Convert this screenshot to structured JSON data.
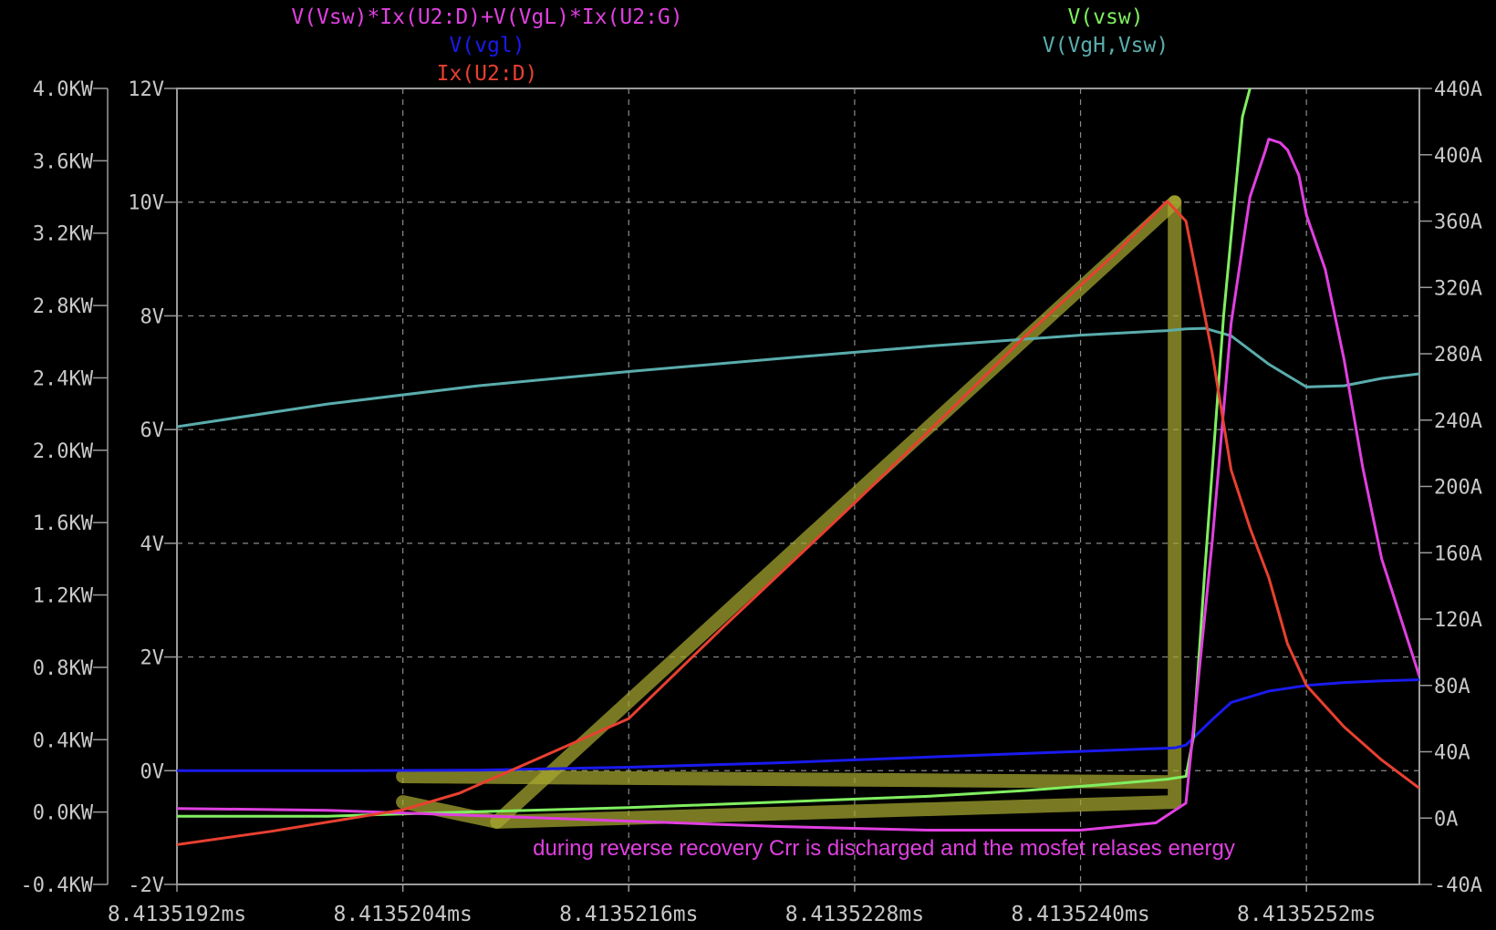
{
  "chart_data": {
    "type": "line",
    "x_unit": "ms",
    "x_ticks": [
      "8.4135192ms",
      "8.4135204ms",
      "8.4135216ms",
      "8.4135228ms",
      "8.4135240ms",
      "8.4135252ms"
    ],
    "xlim": [
      8.4135192,
      8.4135258
    ],
    "axes": {
      "power": {
        "ticks": [
          "4.0KW",
          "3.6KW",
          "3.2KW",
          "2.8KW",
          "2.4KW",
          "2.0KW",
          "1.6KW",
          "1.2KW",
          "0.8KW",
          "0.4KW",
          "0.0KW",
          "-0.4KW"
        ],
        "range": [
          -0.4,
          4.0
        ],
        "unit": "KW"
      },
      "voltage": {
        "ticks": [
          "12V",
          "10V",
          "8V",
          "6V",
          "4V",
          "2V",
          "0V",
          "-2V"
        ],
        "range": [
          -2,
          12
        ],
        "unit": "V"
      },
      "current": {
        "ticks": [
          "440A",
          "400A",
          "360A",
          "320A",
          "280A",
          "240A",
          "200A",
          "160A",
          "120A",
          "80A",
          "40A",
          "0A",
          "-40A"
        ],
        "range": [
          -40,
          440
        ],
        "unit": "A"
      }
    },
    "grid": true,
    "series": [
      {
        "name": "V(Vsw)*Ix(U2:D)+V(VgL)*Ix(U2:G)",
        "axis": "power",
        "color": "#e040e0",
        "x": [
          8.4135192,
          8.41352,
          8.4135208,
          8.4135216,
          8.4135224,
          8.4135232,
          8.413524,
          8.4135244,
          8.41352456,
          8.4135247,
          8.4135248,
          8.4135249,
          8.41352498,
          8.413525,
          8.41352506,
          8.4135251,
          8.41352516,
          8.4135252,
          8.4135253,
          8.4135254,
          8.4135255,
          8.4135256,
          8.4135258
        ],
        "y": [
          0.02,
          0.01,
          -0.02,
          -0.05,
          -0.08,
          -0.1,
          -0.1,
          -0.06,
          0.05,
          1.5,
          2.7,
          3.4,
          3.65,
          3.72,
          3.7,
          3.66,
          3.52,
          3.3,
          3.0,
          2.5,
          1.9,
          1.4,
          0.75
        ]
      },
      {
        "name": "V(vgl)",
        "axis": "voltage",
        "color": "#1a1aee",
        "x": [
          8.4135192,
          8.41352,
          8.4135208,
          8.4135216,
          8.4135224,
          8.4135232,
          8.413524,
          8.4135245,
          8.41352456,
          8.4135247,
          8.4135248,
          8.413525,
          8.4135252,
          8.4135254,
          8.4135256,
          8.4135258
        ],
        "y": [
          0.0,
          0.0,
          0.01,
          0.06,
          0.14,
          0.24,
          0.34,
          0.4,
          0.45,
          0.9,
          1.2,
          1.4,
          1.5,
          1.55,
          1.58,
          1.6
        ]
      },
      {
        "name": "Ix(U2:D)",
        "axis": "current",
        "color": "#e84030",
        "x": [
          8.4135192,
          8.4135197,
          8.4135204,
          8.4135207,
          8.4135211,
          8.4135216,
          8.4135221,
          8.4135228,
          8.4135233,
          8.4135237,
          8.41352418,
          8.41352446,
          8.41352456,
          8.4135247,
          8.4135248,
          8.4135249,
          8.413525,
          8.4135251,
          8.4135252,
          8.4135254,
          8.4135256,
          8.4135258
        ],
        "y": [
          -16,
          -8,
          5,
          15,
          35,
          60,
          115,
          190,
          245,
          290,
          340,
          372,
          360,
          280,
          210,
          175,
          145,
          105,
          80,
          55,
          35,
          18
        ]
      },
      {
        "name": "V(vsw)",
        "axis": "voltage",
        "color": "#80ee60",
        "x": [
          8.4135192,
          8.41352,
          8.4135208,
          8.4135216,
          8.4135224,
          8.4135232,
          8.4135237,
          8.4135241,
          8.41352446,
          8.41352456,
          8.4135246,
          8.41352466,
          8.41352476,
          8.41352486,
          8.4135249
        ],
        "y": [
          -0.8,
          -0.8,
          -0.72,
          -0.65,
          -0.55,
          -0.45,
          -0.35,
          -0.25,
          -0.15,
          -0.1,
          0.6,
          3.5,
          8,
          11.5,
          12
        ]
      },
      {
        "name": "V(VgH,Vsw)",
        "axis": "voltage",
        "color": "#5aacac",
        "x": [
          8.4135192,
          8.41352,
          8.4135208,
          8.4135216,
          8.4135224,
          8.4135232,
          8.413524,
          8.41352446,
          8.41352456,
          8.41352466,
          8.4135248,
          8.413525,
          8.4135252,
          8.4135254,
          8.4135256,
          8.4135258
        ],
        "y": [
          6.05,
          6.45,
          6.77,
          7.02,
          7.25,
          7.47,
          7.66,
          7.74,
          7.77,
          7.78,
          7.65,
          7.15,
          6.75,
          6.77,
          6.9,
          6.98
        ]
      }
    ],
    "annotation": {
      "text": "during reverse recovery Crr is discharged and the mosfet relases energy",
      "color": "#e040e0",
      "highlight_color": "#a8a830",
      "highlight_outline": [
        [
          8.4135204,
          -0.1
        ],
        [
          8.4135245,
          -0.2
        ],
        [
          8.4135245,
          10.0
        ],
        [
          8.4135245,
          -0.55
        ],
        [
          8.4135209,
          -0.9
        ],
        [
          8.4135204,
          -0.55
        ]
      ],
      "highlight_diagonal": [
        [
          8.4135209,
          -0.9
        ],
        [
          8.4135245,
          10.0
        ]
      ]
    }
  }
}
